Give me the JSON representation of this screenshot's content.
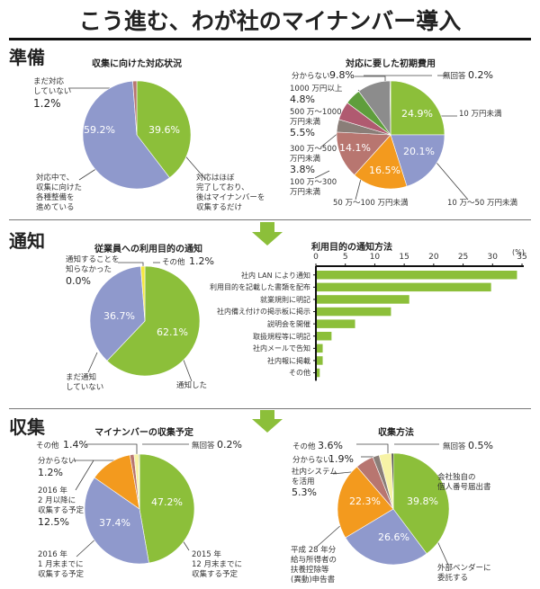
{
  "page_title": "こう進む、わが社のマイナンバー導入",
  "sections": {
    "prep": "準備",
    "notify": "通知",
    "collect": "収集"
  },
  "colors": {
    "green": "#8cbf3a",
    "lavender": "#8f99cc",
    "orange": "#f39a1e",
    "rose": "#b87670",
    "gray": "#8c8c8c",
    "darkgreen": "#5f9e3c",
    "magenta": "#b05a70",
    "taupe": "#8a7e78",
    "yellow": "#f5e840",
    "lightyellow": "#f7f3a6",
    "black": "#111111",
    "arrow": "#8cbf3a"
  },
  "chart_data": [
    {
      "type": "pie",
      "title": "収集に向けた対応状況",
      "slices": [
        {
          "label": "対応はほぼ完了しており、後はマイナンバーを収集するだけ",
          "value": 39.6,
          "display": "39.6%",
          "color": "green"
        },
        {
          "label": "対応中で、収集に向けた各種整備を進めている",
          "value": 59.2,
          "display": "59.2%",
          "color": "lavender"
        },
        {
          "label": "まだ対応していない",
          "value": 1.2,
          "display": "1.2%",
          "color": "rose"
        }
      ],
      "labels": {
        "done": [
          "対応はほぼ",
          "完了しており、",
          "後はマイナンバーを",
          "収集するだけ"
        ],
        "inprogress": [
          "対応中で、",
          "収集に向けた",
          "各種整備を",
          "進めている"
        ],
        "notyet": [
          "まだ対応",
          "していない"
        ],
        "notyet_pct": "1.2%"
      }
    },
    {
      "type": "pie",
      "title": "対応に要した初期費用",
      "slices": [
        {
          "label": "10万円未満",
          "value": 24.9,
          "display": "24.9%",
          "color": "green"
        },
        {
          "label": "10万～50万円未満",
          "value": 20.1,
          "display": "20.1%",
          "color": "lavender"
        },
        {
          "label": "50万～100万円未満",
          "value": 16.5,
          "display": "16.5%",
          "color": "orange"
        },
        {
          "label": "100万～300万円未満",
          "value": 14.1,
          "display": "14.1%",
          "color": "rose"
        },
        {
          "label": "300万～500万円未満",
          "value": 3.8,
          "display": "3.8%",
          "color": "taupe"
        },
        {
          "label": "500万～1000万円未満",
          "value": 5.5,
          "display": "5.5%",
          "color": "magenta"
        },
        {
          "label": "1000万円以上",
          "value": 4.8,
          "display": "4.8%",
          "color": "darkgreen"
        },
        {
          "label": "分からない",
          "value": 9.8,
          "display": "9.8%",
          "color": "gray"
        },
        {
          "label": "無回答",
          "value": 0.2,
          "display": "0.2%",
          "color": "black"
        }
      ],
      "labels": {
        "l10": "10 万円未満",
        "l10_50": "10 万～50 万円未満",
        "l50_100": "50 万～100 万円未満",
        "l100_300": [
          "100 万～300",
          "万円未満"
        ],
        "l300_500": [
          "300 万～500",
          "万円未満"
        ],
        "l300_500_pct": "3.8%",
        "l500_1000": [
          "500 万～1000",
          "万円未満"
        ],
        "l500_1000_pct": "5.5%",
        "l1000": "1000 万円以上",
        "l1000_pct": "4.8%",
        "unknown": "分からない",
        "unknown_pct": "9.8%",
        "noanswer": "無回答",
        "noanswer_pct": "0.2%"
      }
    },
    {
      "type": "pie",
      "title": "従業員への利用目的の通知",
      "slices": [
        {
          "label": "通知した",
          "value": 62.1,
          "display": "62.1%",
          "color": "green"
        },
        {
          "label": "まだ通知していない",
          "value": 36.7,
          "display": "36.7%",
          "color": "lavender"
        },
        {
          "label": "通知することを知らなかった",
          "value": 0.0,
          "display": "0.0%",
          "color": "gray"
        },
        {
          "label": "その他",
          "value": 1.2,
          "display": "1.2%",
          "color": "yellow"
        }
      ],
      "labels": {
        "done": "通知した",
        "notyet": [
          "まだ通知",
          "していない"
        ],
        "didntknow": [
          "通知することを",
          "知らなかった"
        ],
        "didntknow_pct": "0.0%",
        "other": "その他",
        "other_pct": "1.2%"
      }
    },
    {
      "type": "bar",
      "orientation": "horizontal",
      "title": "利用目的の通知方法",
      "unit": "(%)",
      "xlim": [
        0,
        35
      ],
      "ticks": [
        "0",
        "5",
        "10",
        "15",
        "20",
        "25",
        "30",
        "35"
      ],
      "categories": [
        "社内 LAN により通知",
        "利用目的を記載した書類を配布",
        "就業規則に明記",
        "社内備え付けの掲示板に掲示",
        "説明会を開催",
        "取扱規程等に明記",
        "社内メールで告知",
        "社内報に掲載",
        "その他"
      ],
      "values": [
        34.0,
        29.6,
        15.7,
        12.6,
        6.5,
        2.5,
        1.0,
        1.0,
        0.5
      ],
      "color": "green"
    },
    {
      "type": "pie",
      "title": "マイナンバーの収集予定",
      "slices": [
        {
          "label": "2015年12月末までに収集する予定",
          "value": 47.2,
          "display": "47.2%",
          "color": "green"
        },
        {
          "label": "2016年1月末までに収集する予定",
          "value": 37.4,
          "display": "37.4%",
          "color": "lavender"
        },
        {
          "label": "2016年2月以降に収集する予定",
          "value": 12.5,
          "display": "12.5%",
          "color": "orange"
        },
        {
          "label": "分からない",
          "value": 1.2,
          "display": "1.2%",
          "color": "rose"
        },
        {
          "label": "その他",
          "value": 1.4,
          "display": "1.4%",
          "color": "lightyellow"
        },
        {
          "label": "無回答",
          "value": 0.2,
          "display": "0.2%",
          "color": "black"
        }
      ],
      "labels": {
        "dec2015": [
          "2015 年",
          "12 月末までに",
          "収集する予定"
        ],
        "jan2016": [
          "2016 年",
          "1 月末までに",
          "収集する予定"
        ],
        "feb2016": [
          "2016 年",
          "2 月以降に",
          "収集する予定"
        ],
        "feb2016_pct": "12.5%",
        "unknown": "分からない",
        "unknown_pct": "1.2%",
        "other": "その他",
        "other_pct": "1.4%",
        "noanswer": "無回答",
        "noanswer_pct": "0.2%"
      }
    },
    {
      "type": "pie",
      "title": "収集方法",
      "slices": [
        {
          "label": "会社独自の個人番号届出書",
          "value": 39.8,
          "display": "39.8%",
          "color": "green"
        },
        {
          "label": "外部ベンダーに委託する",
          "value": 26.6,
          "display": "26.6%",
          "color": "lavender"
        },
        {
          "label": "平成28年分給与所得者の扶養控除等（異動）申告書",
          "value": 22.3,
          "display": "22.3%",
          "color": "orange"
        },
        {
          "label": "社内システムを活用",
          "value": 5.3,
          "display": "5.3%",
          "color": "rose"
        },
        {
          "label": "分からない",
          "value": 1.9,
          "display": "1.9%",
          "color": "taupe"
        },
        {
          "label": "その他",
          "value": 3.6,
          "display": "3.6%",
          "color": "lightyellow"
        },
        {
          "label": "無回答",
          "value": 0.5,
          "display": "0.5%",
          "color": "black"
        }
      ],
      "labels": {
        "own": [
          "会社独自の",
          "個人番号届出書"
        ],
        "vendor": [
          "外部ベンダーに",
          "委託する"
        ],
        "tax": [
          "平成 28 年分",
          "給与所得者の",
          "扶養控除等",
          "(異動)申告書"
        ],
        "system": [
          "社内システム",
          "を活用"
        ],
        "system_pct": "5.3%",
        "unknown": "分からない",
        "unknown_pct": "1.9%",
        "other": "その他",
        "other_pct": "3.6%",
        "noanswer": "無回答",
        "noanswer_pct": "0.5%"
      }
    }
  ]
}
